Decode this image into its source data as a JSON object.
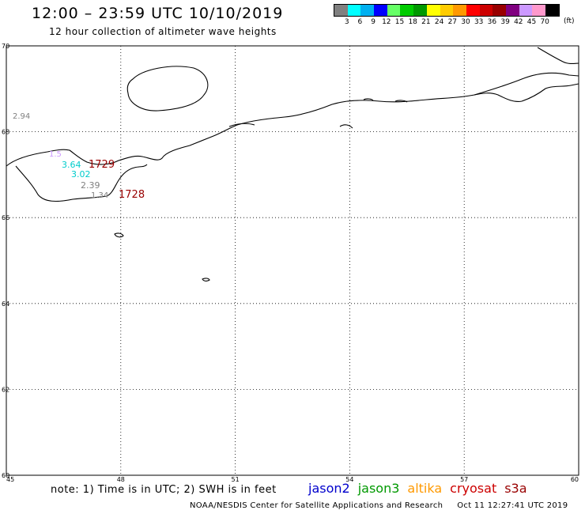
{
  "header": {
    "title": "12:00 – 23:59 UTC 10/10/2019",
    "subtitle": "12 hour collection of altimeter wave heights"
  },
  "legend": {
    "unit": "(ft)",
    "colors": [
      "#808080",
      "#00ffff",
      "#00b0f0",
      "#0000ff",
      "#66ff66",
      "#00cc00",
      "#009900",
      "#ffff00",
      "#ffcc00",
      "#ff9900",
      "#ff0000",
      "#cc0000",
      "#990000",
      "#800080",
      "#cc99ff",
      "#ff99cc",
      "#000000"
    ],
    "ticks": [
      "3",
      "6",
      "9",
      "12",
      "15",
      "18",
      "21",
      "24",
      "27",
      "30",
      "33",
      "36",
      "39",
      "42",
      "45",
      "70"
    ]
  },
  "axes": {
    "lat_labels": [
      "70",
      "68",
      "66",
      "64",
      "62",
      "60"
    ],
    "lon_labels": [
      "45",
      "48",
      "51",
      "54",
      "57",
      "60"
    ]
  },
  "observations": [
    {
      "text": "2.94",
      "color": "#808080"
    },
    {
      "text": "1.5",
      "color": "#cc99ff"
    },
    {
      "text": "3.64",
      "color": "#00cccc"
    },
    {
      "text": "1729",
      "color": "#990000"
    },
    {
      "text": "3.02",
      "color": "#00cccc"
    },
    {
      "text": "2.39",
      "color": "#808080"
    },
    {
      "text": "1.34",
      "color": "#808080"
    },
    {
      "text": "1728",
      "color": "#990000"
    }
  ],
  "note": "note: 1) Time is in UTC; 2) SWH is in feet",
  "satellites": [
    {
      "name": "jason2",
      "color": "#0000cc"
    },
    {
      "name": "jason3",
      "color": "#009900"
    },
    {
      "name": "altika",
      "color": "#ff9900"
    },
    {
      "name": "cryosat",
      "color": "#cc0000"
    },
    {
      "name": "s3a",
      "color": "#990000"
    }
  ],
  "footer": {
    "credit": "NOAA/NESDIS Center for Satellite Applications and Research",
    "timestamp": "Oct 11 12:27:41 UTC 2019"
  }
}
